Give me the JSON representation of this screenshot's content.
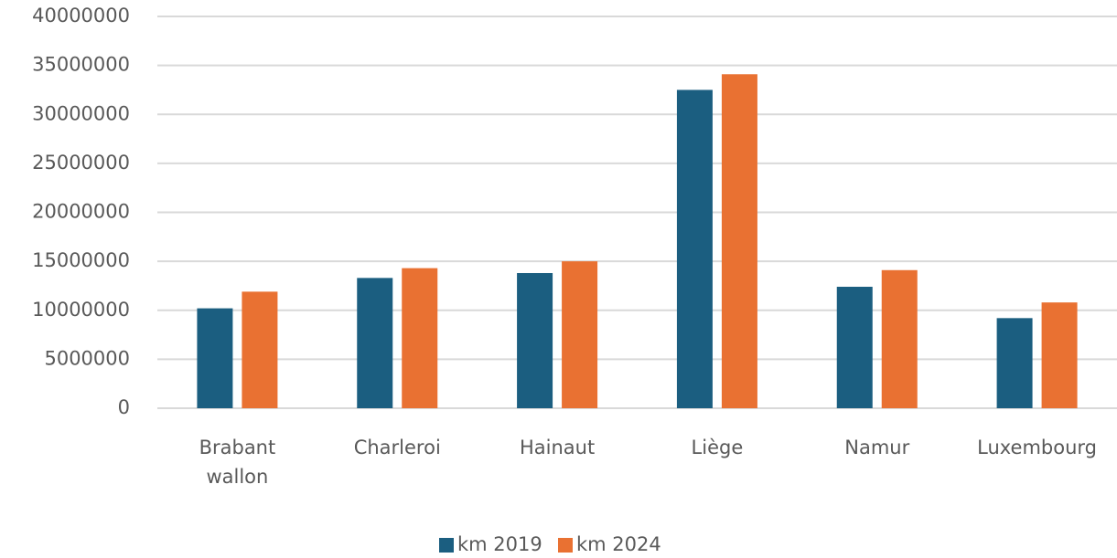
{
  "chart_data": {
    "type": "bar",
    "categories": [
      "Brabant wallon",
      "Charleroi",
      "Hainaut",
      "Liège",
      "Namur",
      "Luxembourg"
    ],
    "series": [
      {
        "name": "km 2019",
        "color": "#1b5e80",
        "values": [
          10200000,
          13300000,
          13800000,
          32500000,
          12400000,
          9200000
        ]
      },
      {
        "name": "km 2024",
        "color": "#e97132",
        "values": [
          11900000,
          14300000,
          15000000,
          34100000,
          14100000,
          10800000
        ]
      }
    ],
    "ylim": [
      0,
      40000000
    ],
    "yticks": [
      0,
      5000000,
      10000000,
      15000000,
      20000000,
      25000000,
      30000000,
      35000000,
      40000000
    ],
    "grid": true,
    "legend": "bottom"
  }
}
